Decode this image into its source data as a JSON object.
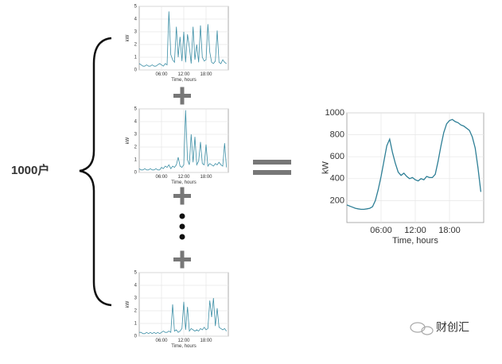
{
  "label": "1000户",
  "watermark": "财创汇",
  "chart_data": [
    {
      "type": "line",
      "xlabel": "Time, hours",
      "ylabel": "kW",
      "xlim": [
        0,
        24
      ],
      "ylim": [
        0,
        5
      ],
      "xticks": [
        {
          "value": 6,
          "label": "06:00"
        },
        {
          "value": 12,
          "label": "12:00"
        },
        {
          "value": 18,
          "label": "18:00"
        }
      ],
      "yticks": [
        0,
        1,
        2,
        3,
        4,
        5
      ],
      "grid": true,
      "color": "#3d8fa6",
      "x": [
        0,
        0.5,
        1,
        1.5,
        2,
        2.5,
        3,
        3.5,
        4,
        4.5,
        5,
        5.5,
        6,
        6.5,
        7,
        7.5,
        8,
        8.5,
        9,
        9.5,
        10,
        10.5,
        11,
        11.5,
        12,
        12.5,
        13,
        13.5,
        14,
        14.5,
        15,
        15.5,
        16,
        16.5,
        17,
        17.5,
        18,
        18.5,
        19,
        19.5,
        20,
        20.5,
        21,
        21.5,
        22,
        22.5,
        23,
        23.5
      ],
      "values": [
        0.5,
        0.4,
        0.3,
        0.3,
        0.4,
        0.3,
        0.3,
        0.4,
        0.3,
        0.3,
        0.4,
        0.5,
        0.4,
        0.3,
        0.5,
        0.4,
        4.6,
        1.2,
        0.8,
        0.6,
        3.4,
        1.0,
        2.6,
        0.7,
        3.0,
        0.6,
        2.8,
        1.8,
        0.5,
        3.4,
        0.8,
        2.0,
        0.6,
        3.5,
        1.0,
        0.7,
        0.8,
        3.6,
        1.4,
        0.6,
        0.5,
        0.7,
        3.1,
        0.6,
        0.5,
        0.8,
        0.6,
        0.5
      ]
    },
    {
      "type": "line",
      "xlabel": "Time, hours",
      "ylabel": "kW",
      "xlim": [
        0,
        24
      ],
      "ylim": [
        0,
        5
      ],
      "xticks": [
        {
          "value": 6,
          "label": "06:00"
        },
        {
          "value": 12,
          "label": "12:00"
        },
        {
          "value": 18,
          "label": "18:00"
        }
      ],
      "yticks": [
        0,
        1,
        2,
        3,
        4,
        5
      ],
      "grid": true,
      "color": "#3d8fa6",
      "x": [
        0,
        0.5,
        1,
        1.5,
        2,
        2.5,
        3,
        3.5,
        4,
        4.5,
        5,
        5.5,
        6,
        6.5,
        7,
        7.5,
        8,
        8.5,
        9,
        9.5,
        10,
        10.5,
        11,
        11.5,
        12,
        12.5,
        13,
        13.5,
        14,
        14.5,
        15,
        15.5,
        16,
        16.5,
        17,
        17.5,
        18,
        18.5,
        19,
        19.5,
        20,
        20.5,
        21,
        21.5,
        22,
        22.5,
        23,
        23.5
      ],
      "values": [
        0.3,
        0.2,
        0.2,
        0.3,
        0.2,
        0.2,
        0.3,
        0.2,
        0.2,
        0.3,
        0.2,
        0.2,
        0.4,
        0.3,
        0.5,
        0.4,
        0.6,
        0.3,
        0.5,
        0.4,
        0.6,
        1.2,
        0.5,
        0.4,
        0.6,
        4.9,
        1.0,
        0.6,
        3.0,
        0.8,
        2.8,
        0.6,
        0.9,
        2.4,
        0.7,
        0.6,
        2.2,
        0.5,
        0.7,
        0.6,
        0.5,
        0.7,
        0.6,
        0.8,
        0.6,
        0.5,
        2.3,
        0.4
      ]
    },
    {
      "type": "line",
      "xlabel": "Time, hours",
      "ylabel": "kW",
      "xlim": [
        0,
        24
      ],
      "ylim": [
        0,
        5
      ],
      "xticks": [
        {
          "value": 6,
          "label": "06:00"
        },
        {
          "value": 12,
          "label": "12:00"
        },
        {
          "value": 18,
          "label": "18:00"
        }
      ],
      "yticks": [
        0,
        1,
        2,
        3,
        4,
        5
      ],
      "grid": true,
      "color": "#3d8fa6",
      "x": [
        0,
        0.5,
        1,
        1.5,
        2,
        2.5,
        3,
        3.5,
        4,
        4.5,
        5,
        5.5,
        6,
        6.5,
        7,
        7.5,
        8,
        8.5,
        9,
        9.5,
        10,
        10.5,
        11,
        11.5,
        12,
        12.5,
        13,
        13.5,
        14,
        14.5,
        15,
        15.5,
        16,
        16.5,
        17,
        17.5,
        18,
        18.5,
        19,
        19.5,
        20,
        20.5,
        21,
        21.5,
        22,
        22.5,
        23,
        23.5
      ],
      "values": [
        0.3,
        0.3,
        0.2,
        0.2,
        0.3,
        0.2,
        0.3,
        0.2,
        0.3,
        0.2,
        0.3,
        0.2,
        0.3,
        0.4,
        0.3,
        0.3,
        0.4,
        0.3,
        2.5,
        0.4,
        0.5,
        0.3,
        0.4,
        0.6,
        2.7,
        0.5,
        2.3,
        0.4,
        0.6,
        0.5,
        0.4,
        0.5,
        0.4,
        0.6,
        0.5,
        0.7,
        0.5,
        0.6,
        2.8,
        1.5,
        3.0,
        0.8,
        2.2,
        0.7,
        0.6,
        0.5,
        0.6,
        0.4
      ]
    },
    {
      "type": "line",
      "xlabel": "Time, hours",
      "ylabel": "kW",
      "xlim": [
        0,
        24
      ],
      "ylim": [
        0,
        1000
      ],
      "xticks": [
        {
          "value": 6,
          "label": "06:00"
        },
        {
          "value": 12,
          "label": "12:00"
        },
        {
          "value": 18,
          "label": "18:00"
        }
      ],
      "yticks": [
        200,
        400,
        600,
        800,
        1000
      ],
      "grid": true,
      "color": "#2e7f96",
      "x": [
        0,
        0.5,
        1,
        1.5,
        2,
        2.5,
        3,
        3.5,
        4,
        4.5,
        5,
        5.5,
        6,
        6.5,
        7,
        7.5,
        8,
        8.5,
        9,
        9.5,
        10,
        10.5,
        11,
        11.5,
        12,
        12.5,
        13,
        13.5,
        14,
        14.5,
        15,
        15.5,
        16,
        16.5,
        17,
        17.5,
        18,
        18.5,
        19,
        19.5,
        20,
        20.5,
        21,
        21.5,
        22,
        22.5,
        23,
        23.5
      ],
      "values": [
        160,
        150,
        140,
        130,
        125,
        120,
        120,
        125,
        130,
        145,
        200,
        300,
        420,
        560,
        700,
        760,
        640,
        540,
        460,
        430,
        450,
        420,
        400,
        410,
        390,
        380,
        400,
        390,
        420,
        410,
        410,
        440,
        560,
        700,
        820,
        900,
        930,
        940,
        920,
        910,
        890,
        880,
        860,
        840,
        780,
        680,
        500,
        280
      ]
    }
  ]
}
